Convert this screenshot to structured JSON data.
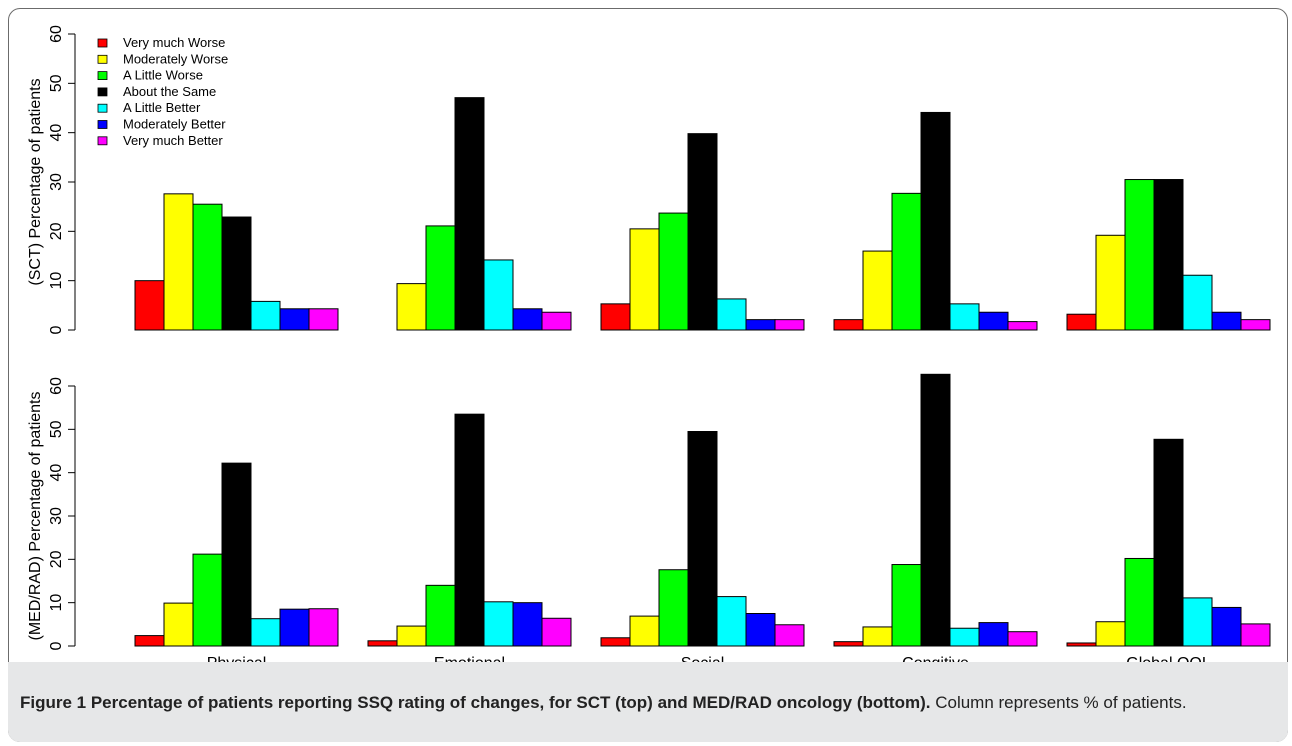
{
  "caption": {
    "bold": "Figure 1 Percentage of patients reporting SSQ rating of changes, for SCT (top) and MED/RAD oncology (bottom).",
    "normal": " Column represents % of patients."
  },
  "chart_data": [
    {
      "type": "bar",
      "ylabel": "(SCT) Percentage of patients",
      "ylim": [
        0,
        60
      ],
      "yticks": [
        "0",
        "10",
        "20",
        "30",
        "40",
        "50",
        "60"
      ],
      "categories": [
        "Physical",
        "Emotional",
        "Social",
        "Congitive",
        "Global QOL"
      ],
      "legend_position": "top-left",
      "series": [
        {
          "name": "Very much Worse",
          "color": "#ff0000",
          "values": [
            10,
            0,
            5.3,
            2.1,
            3.2
          ]
        },
        {
          "name": "Moderately Worse",
          "color": "#ffff00",
          "values": [
            27.6,
            9.4,
            20.5,
            16,
            19.2
          ]
        },
        {
          "name": "A Little Worse",
          "color": "#00ff00",
          "values": [
            25.5,
            21.1,
            23.7,
            27.7,
            30.5
          ]
        },
        {
          "name": "About the Same",
          "color": "#000000",
          "values": [
            22.9,
            47.1,
            39.8,
            44.1,
            30.5
          ]
        },
        {
          "name": "A Little Better",
          "color": "#00ffff",
          "values": [
            5.8,
            14.2,
            6.3,
            5.3,
            11.1
          ]
        },
        {
          "name": "Moderately Better",
          "color": "#0000ff",
          "values": [
            4.3,
            4.3,
            2.1,
            3.6,
            3.6
          ]
        },
        {
          "name": "Very much Better",
          "color": "#ff00ff",
          "values": [
            4.3,
            3.6,
            2.1,
            1.7,
            2.1
          ]
        }
      ]
    },
    {
      "type": "bar",
      "ylabel": "(MED/RAD) Percentage of patients",
      "ylim": [
        0,
        60
      ],
      "yticks": [
        "0",
        "10",
        "20",
        "30",
        "40",
        "50",
        "60"
      ],
      "categories": [
        "Physical",
        "Emotional",
        "Social",
        "Congitive",
        "Global QOL"
      ],
      "series": [
        {
          "name": "Very much Worse",
          "color": "#ff0000",
          "values": [
            2.4,
            1.2,
            1.9,
            1,
            0.7
          ]
        },
        {
          "name": "Moderately Worse",
          "color": "#ffff00",
          "values": [
            9.9,
            4.6,
            6.9,
            4.4,
            5.6
          ]
        },
        {
          "name": "A Little Worse",
          "color": "#00ff00",
          "values": [
            21.2,
            14,
            17.6,
            18.8,
            20.2
          ]
        },
        {
          "name": "About the Same",
          "color": "#000000",
          "values": [
            42.2,
            53.5,
            49.5,
            62.7,
            47.7
          ]
        },
        {
          "name": "A Little Better",
          "color": "#00ffff",
          "values": [
            6.3,
            10.2,
            11.4,
            4.1,
            11.1
          ]
        },
        {
          "name": "Moderately Better",
          "color": "#0000ff",
          "values": [
            8.5,
            10,
            7.5,
            5.4,
            8.9
          ]
        },
        {
          "name": "Very much Better",
          "color": "#ff00ff",
          "values": [
            8.6,
            6.4,
            4.9,
            3.3,
            5.1
          ]
        }
      ]
    }
  ]
}
